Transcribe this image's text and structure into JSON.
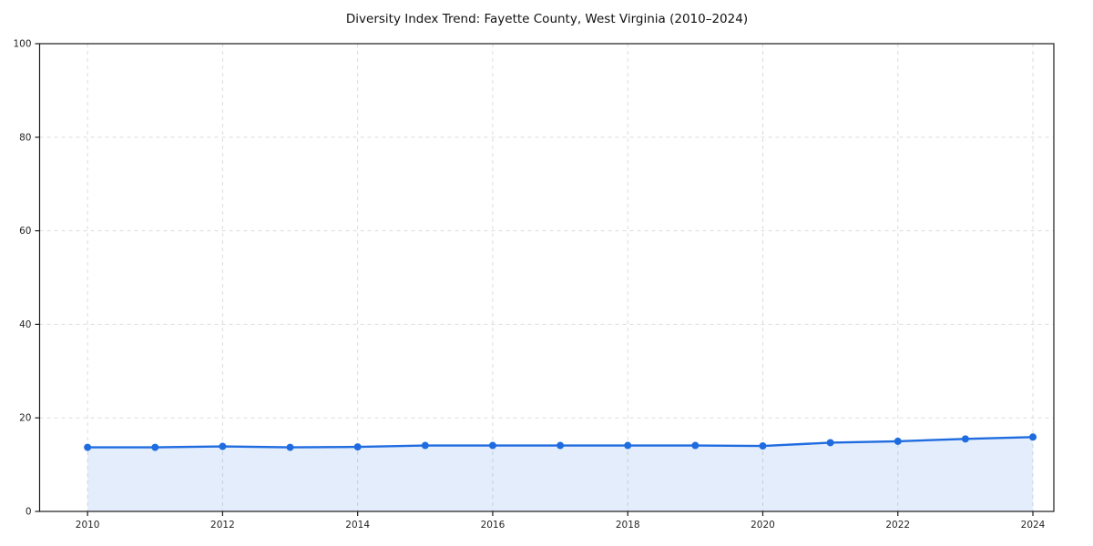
{
  "chart_data": {
    "type": "line",
    "title": "Diversity Index Trend: Fayette County, West Virginia (2010–2024)",
    "xlabel": "",
    "ylabel": "",
    "x": [
      2010,
      2011,
      2012,
      2013,
      2014,
      2015,
      2016,
      2017,
      2018,
      2019,
      2020,
      2021,
      2022,
      2023,
      2024
    ],
    "series": [
      {
        "name": "Diversity Index",
        "values": [
          13.7,
          13.7,
          13.9,
          13.7,
          13.8,
          14.1,
          14.1,
          14.1,
          14.1,
          14.1,
          14.0,
          14.7,
          15.0,
          15.5,
          15.9
        ]
      }
    ],
    "xticks": [
      2010,
      2012,
      2014,
      2016,
      2018,
      2020,
      2022,
      2024
    ],
    "yticks": [
      0,
      20,
      40,
      60,
      80,
      100
    ],
    "ylim": [
      0,
      100
    ],
    "xlim": [
      2009.29,
      2024.31
    ],
    "grid": true,
    "grid_style": "dashed",
    "legend": "none",
    "marker": "circle",
    "area_fill": true,
    "colors": {
      "line": "#1f6ce0",
      "marker": "#1f6ce0",
      "area": "#1f6ce0",
      "area_opacity": 0.12,
      "grid": "#dcdcdc",
      "spine": "#1a1a1a",
      "tick_label": "#262626",
      "title": "#111111",
      "background": "#ffffff"
    }
  }
}
